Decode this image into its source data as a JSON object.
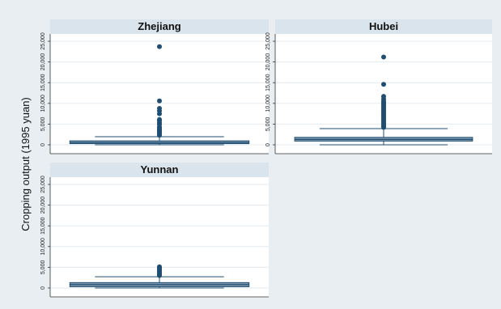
{
  "chart_data": {
    "type": "boxplot",
    "ylabel": "Cropping output (1995 yuan)",
    "ylim": [
      0,
      25000
    ],
    "yticks": [
      0,
      5000,
      10000,
      15000,
      20000,
      25000
    ],
    "ytick_labels": [
      "0",
      "5,000",
      "10,000",
      "15,000",
      "20,000",
      "25,000"
    ],
    "grid": true,
    "colors": {
      "background": "#e8eef1",
      "plot": "#ffffff",
      "header": "#d9e4ec",
      "box": "#7f97ac",
      "line": "#1f4e72",
      "outlier": "#1f4e72",
      "grid": "#e3ebf1"
    },
    "panels": [
      {
        "name": "Zhejiang",
        "stats": {
          "min": 0,
          "q1": 280,
          "median": 550,
          "q3": 950,
          "max": 1950
        },
        "outliers": [
          2300,
          2600,
          2900,
          3200,
          3500,
          3700,
          4000,
          4300,
          4900,
          5300,
          5800,
          6100,
          7500,
          8200,
          8800,
          10600,
          23700
        ]
      },
      {
        "name": "Hubei",
        "stats": {
          "min": 0,
          "q1": 900,
          "median": 1300,
          "q3": 1800,
          "max": 3900
        },
        "outliers": [
          4200,
          4500,
          4800,
          5100,
          5400,
          5700,
          6000,
          6300,
          6600,
          6900,
          7200,
          7500,
          7800,
          8100,
          8400,
          8700,
          9000,
          9300,
          9600,
          9900,
          10200,
          10500,
          11000,
          11700,
          14600,
          21200
        ]
      },
      {
        "name": "Yunnan",
        "stats": {
          "min": 0,
          "q1": 300,
          "median": 800,
          "q3": 1300,
          "max": 2700
        },
        "outliers": [
          3000,
          3300,
          3600,
          3900,
          4200,
          4500,
          4800,
          5100
        ]
      }
    ]
  }
}
